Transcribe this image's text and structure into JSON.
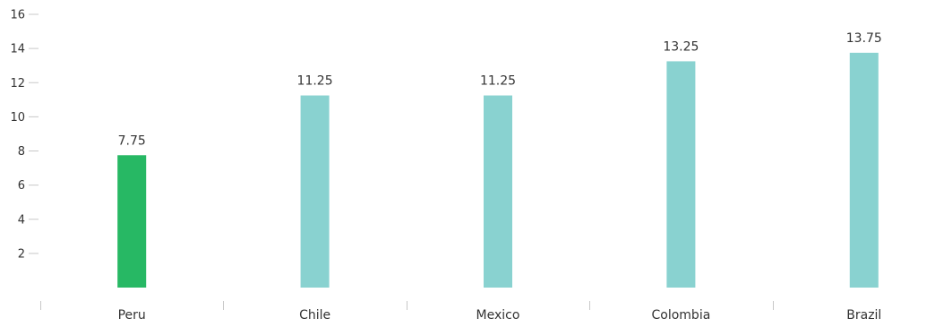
{
  "chart_data": {
    "type": "bar",
    "title": "",
    "xlabel": "",
    "ylabel": "",
    "categories": [
      "Peru",
      "Chile",
      "Mexico",
      "Colombia",
      "Brazil"
    ],
    "values": [
      7.75,
      11.25,
      11.25,
      13.25,
      13.75
    ],
    "data_labels": [
      "7.75",
      "11.25",
      "11.25",
      "13.25",
      "13.75"
    ],
    "bar_colors": [
      "#27b864",
      "#89d2d0",
      "#89d2d0",
      "#89d2d0",
      "#89d2d0"
    ],
    "ylim": [
      0,
      16
    ],
    "yticks": [
      2,
      4,
      6,
      8,
      10,
      12,
      14,
      16
    ],
    "grid": false,
    "legend": "none"
  },
  "colors": {
    "highlight": "#27b864",
    "default_bar": "#89d2d0",
    "axis_text": "#333333",
    "tick_line": "#c8c8c8"
  }
}
